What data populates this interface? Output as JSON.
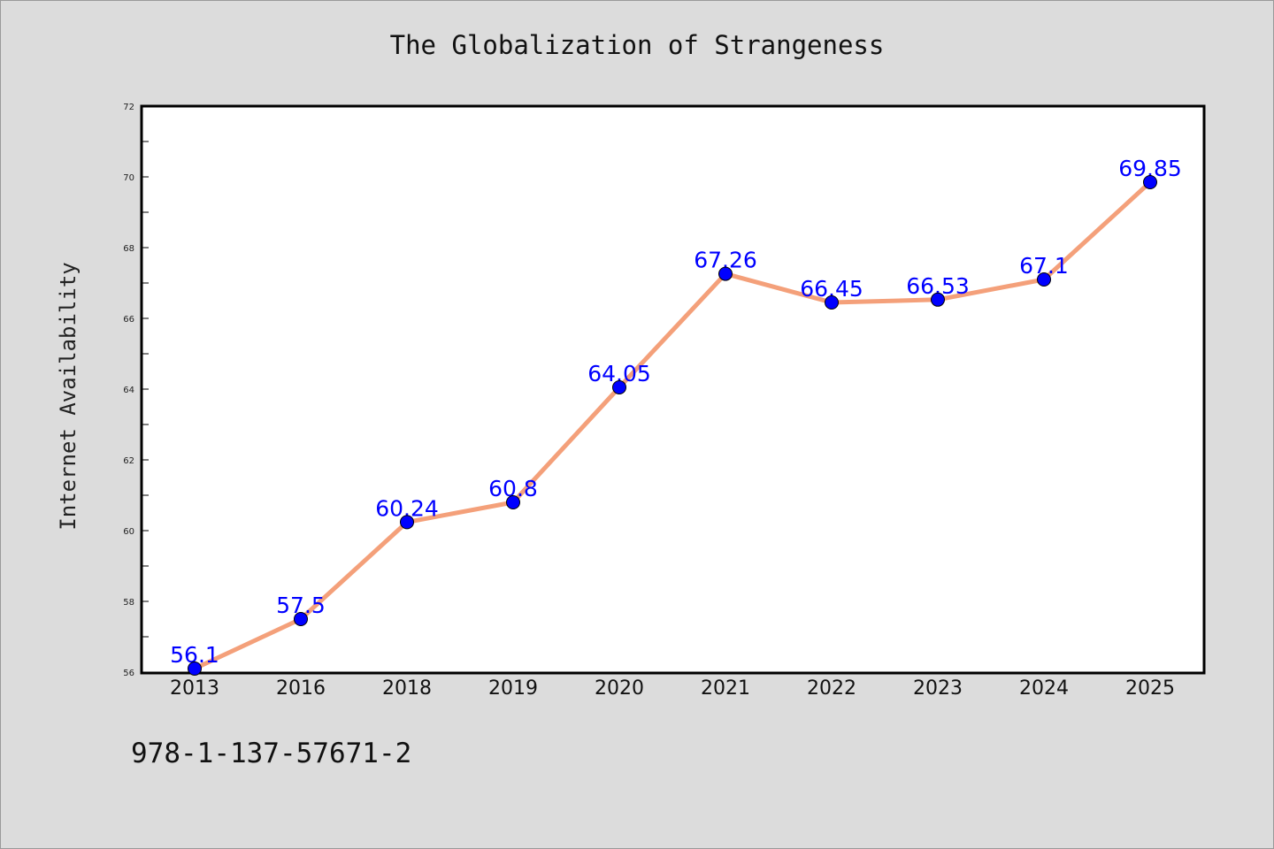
{
  "chart_data": {
    "type": "line",
    "title": "The Globalization of Strangeness",
    "xlabel": "",
    "ylabel": "Internet Availability",
    "categories": [
      "2013",
      "2016",
      "2018",
      "2019",
      "2020",
      "2021",
      "2022",
      "2023",
      "2024",
      "2025"
    ],
    "series": [
      {
        "values": [
          56.1,
          57.5,
          60.24,
          60.8,
          64.05,
          67.26,
          66.45,
          66.53,
          67.1,
          69.85
        ],
        "data_labels": [
          "56.1",
          "57.5",
          "60.24",
          "60.8",
          "64.05",
          "67.26",
          "66.45",
          "66.53",
          "67.1",
          "69.85"
        ]
      }
    ],
    "ylim": [
      56,
      72
    ],
    "yticks": [
      "56",
      "58",
      "60",
      "62",
      "64",
      "66",
      "68",
      "70",
      "72"
    ],
    "grid": false,
    "line_color": "#f4a07a",
    "marker_color": "#0000ff",
    "label_color": "#0000ff"
  },
  "footer": {
    "isbn": "978-1-137-57671-2"
  }
}
